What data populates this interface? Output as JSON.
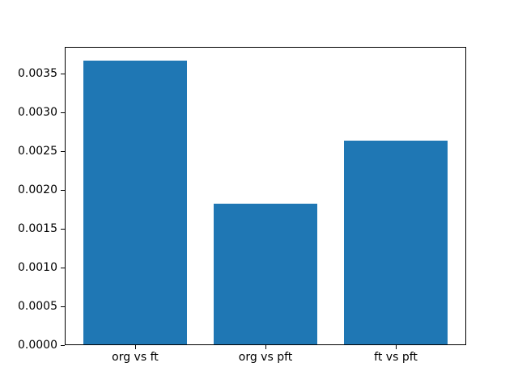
{
  "chart_data": {
    "type": "bar",
    "categories": [
      "org vs ft",
      "org vs pft",
      "ft vs pft"
    ],
    "values": [
      0.00367,
      0.00183,
      0.00264
    ],
    "title": "",
    "xlabel": "",
    "ylabel": "",
    "ylim": [
      0,
      0.00385
    ],
    "yticks": [
      0.0,
      0.0005,
      0.001,
      0.0015,
      0.002,
      0.0025,
      0.003,
      0.0035
    ],
    "ytick_labels": [
      "0.0000",
      "0.0005",
      "0.0010",
      "0.0015",
      "0.0020",
      "0.0025",
      "0.0030",
      "0.0035"
    ],
    "bar_color": "#1f77b4",
    "axis_color": "#000000",
    "background_color": "#ffffff",
    "grid": false,
    "legend": null,
    "bar_relative_width": 0.8
  }
}
